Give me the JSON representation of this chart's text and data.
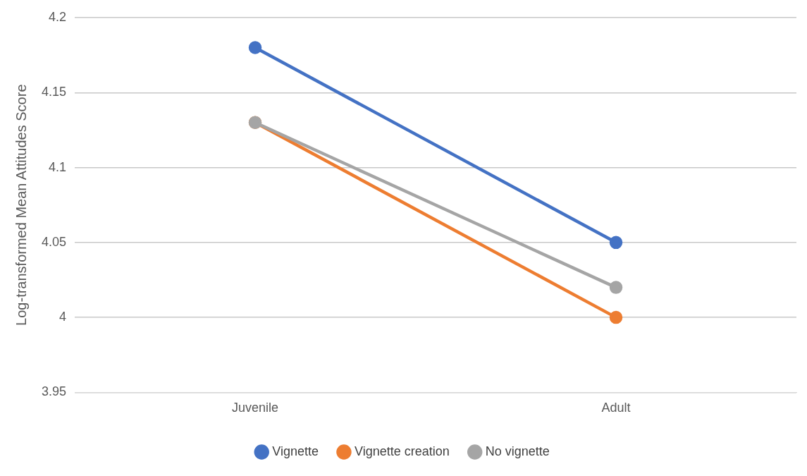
{
  "chart_data": {
    "type": "line",
    "ylabel": "Log-transformed Mean Attitudes Score",
    "categories": [
      "Juvenile",
      "Adult"
    ],
    "series": [
      {
        "name": "Vignette",
        "color": "#4472c4",
        "values": [
          4.18,
          4.05
        ]
      },
      {
        "name": "Vignette creation",
        "color": "#ed7d31",
        "values": [
          4.13,
          4.0
        ]
      },
      {
        "name": "No vignette",
        "color": "#a5a5a5",
        "values": [
          4.13,
          4.02
        ]
      }
    ],
    "ylim": [
      3.95,
      4.2
    ],
    "yticks": [
      3.95,
      4,
      4.05,
      4.1,
      4.15,
      4.2
    ],
    "grid": "y",
    "legend": "bottom",
    "marker": "circle",
    "line_style": "solid"
  }
}
